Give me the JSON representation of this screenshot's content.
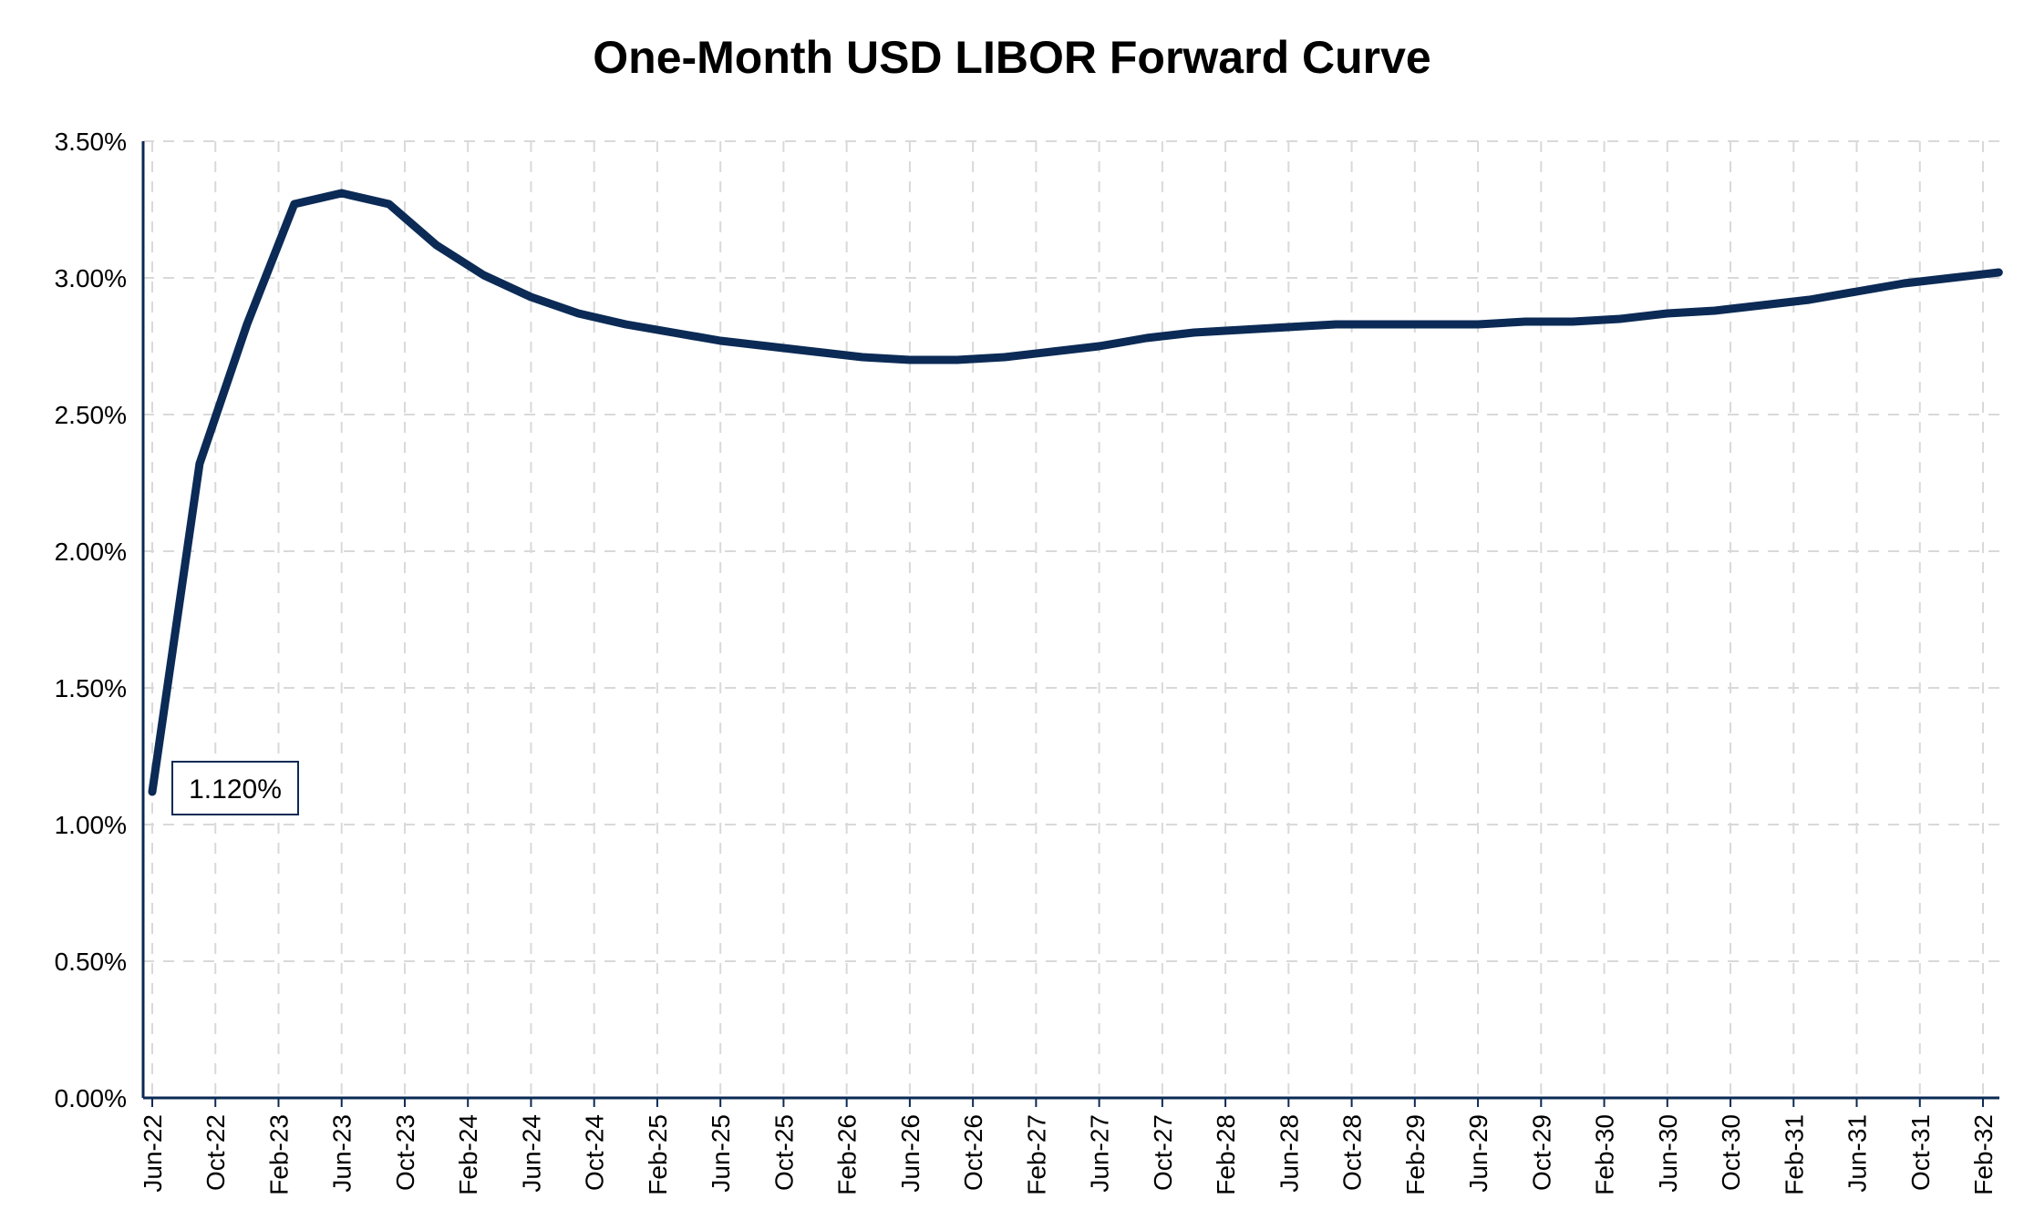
{
  "chart_data": {
    "type": "line",
    "title": "One-Month USD LIBOR Forward Curve",
    "xlabel": "",
    "ylabel": "",
    "ylim": [
      0,
      3.5
    ],
    "y_ticks": [
      "0.00%",
      "0.50%",
      "1.00%",
      "1.50%",
      "2.00%",
      "2.50%",
      "3.00%",
      "3.50%"
    ],
    "x_ticks": [
      "Jun-22",
      "Oct-22",
      "Feb-23",
      "Jun-23",
      "Oct-23",
      "Feb-24",
      "Jun-24",
      "Oct-24",
      "Feb-25",
      "Jun-25",
      "Oct-25",
      "Feb-26",
      "Jun-26",
      "Oct-26",
      "Feb-27",
      "Jun-27",
      "Oct-27",
      "Feb-28",
      "Jun-28",
      "Oct-28",
      "Feb-29",
      "Jun-29",
      "Oct-29",
      "Feb-30",
      "Jun-30",
      "Oct-30",
      "Feb-31",
      "Jun-31",
      "Oct-31",
      "Feb-32"
    ],
    "grid": true,
    "grid_style": "dashed",
    "legend": "none",
    "line_color": "#0b2a55",
    "series": [
      {
        "x": [
          "2022-06",
          "2022-09",
          "2022-12",
          "2023-03",
          "2023-06",
          "2023-09",
          "2023-12",
          "2024-03",
          "2024-06",
          "2024-09",
          "2024-12",
          "2025-03",
          "2025-06",
          "2025-09",
          "2025-12",
          "2026-03",
          "2026-06",
          "2026-09",
          "2026-12",
          "2027-03",
          "2027-06",
          "2027-09",
          "2027-12",
          "2028-03",
          "2028-06",
          "2028-09",
          "2028-12",
          "2029-03",
          "2029-06",
          "2029-09",
          "2029-12",
          "2030-03",
          "2030-06",
          "2030-09",
          "2030-12",
          "2031-03",
          "2031-06",
          "2031-09",
          "2031-12",
          "2032-03"
        ],
        "values": [
          1.12,
          2.32,
          2.83,
          3.27,
          3.31,
          3.27,
          3.12,
          3.01,
          2.93,
          2.87,
          2.83,
          2.8,
          2.77,
          2.75,
          2.73,
          2.71,
          2.7,
          2.7,
          2.71,
          2.73,
          2.75,
          2.78,
          2.8,
          2.81,
          2.82,
          2.83,
          2.83,
          2.83,
          2.83,
          2.84,
          2.84,
          2.85,
          2.87,
          2.88,
          2.9,
          2.92,
          2.95,
          2.98,
          3.0,
          3.02
        ]
      }
    ],
    "annotations": [
      {
        "text": "1.120%",
        "x": "2022-06",
        "y": 1.12
      }
    ]
  }
}
